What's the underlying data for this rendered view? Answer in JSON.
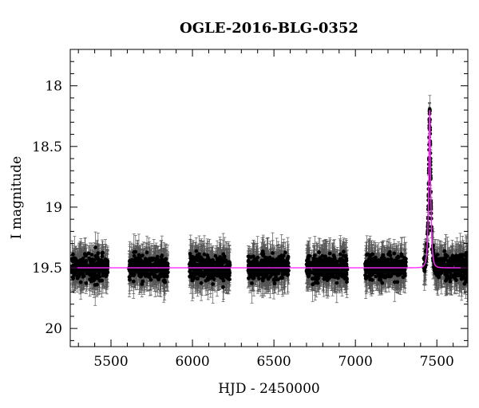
{
  "chart_data": {
    "type": "scatter",
    "title": "OGLE-2016-BLG-0352",
    "xlabel": "HJD - 2450000",
    "ylabel": "I magnitude",
    "xlim": [
      5250,
      7690
    ],
    "ylim": [
      20.15,
      17.7
    ],
    "y_inverted": true,
    "xticks": [
      5500,
      6000,
      6500,
      7000,
      7500
    ],
    "yticks": [
      18,
      18.5,
      19,
      19.5,
      20
    ],
    "ytick_labels": [
      "18",
      "18.5",
      "19",
      "19.5",
      "20"
    ],
    "grid": false,
    "legend": "none",
    "baseline_mag": 19.5,
    "peak": {
      "hjd": 7456,
      "mag": 18.2
    },
    "seasons": [
      {
        "start": 5260,
        "end": 5480
      },
      {
        "start": 5610,
        "end": 5850
      },
      {
        "start": 5980,
        "end": 6230
      },
      {
        "start": 6340,
        "end": 6590
      },
      {
        "start": 6700,
        "end": 6950
      },
      {
        "start": 7060,
        "end": 7310
      },
      {
        "start": 7420,
        "end": 7690
      }
    ],
    "series": [
      {
        "type": "scatter_with_errors",
        "color": "#000000"
      },
      {
        "type": "model_curve",
        "color": "#ff2bff"
      }
    ]
  }
}
